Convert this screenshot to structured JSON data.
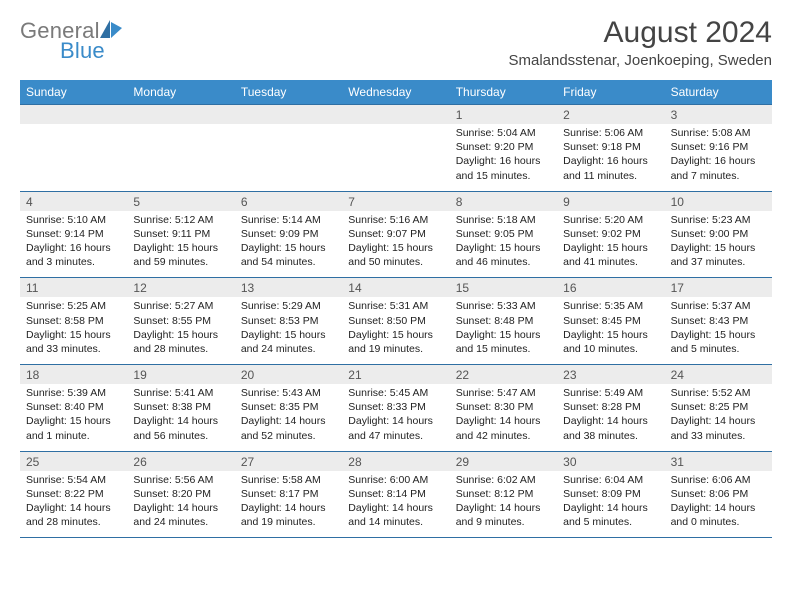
{
  "colors": {
    "header_bg": "#3a8bc9",
    "rule": "#2f6fa3",
    "band": "#ececec",
    "text": "#222222",
    "logo_gray": "#7a7a7a",
    "logo_blue": "#3a8bc9",
    "background": "#ffffff"
  },
  "typography": {
    "base_family": "Arial",
    "title_pt": 30,
    "location_pt": 15,
    "dow_pt": 12,
    "daynum_pt": 12,
    "body_pt": 10.5,
    "logo_pt": 22
  },
  "logo": {
    "part1": "General",
    "part2": "Blue"
  },
  "title": "August 2024",
  "location": "Smalandsstenar, Joenkoeping, Sweden",
  "days_of_week": [
    "Sunday",
    "Monday",
    "Tuesday",
    "Wednesday",
    "Thursday",
    "Friday",
    "Saturday"
  ],
  "weeks": [
    {
      "nums": [
        "",
        "",
        "",
        "",
        "1",
        "2",
        "3"
      ],
      "cells": [
        null,
        null,
        null,
        null,
        {
          "sunrise": "Sunrise: 5:04 AM",
          "sunset": "Sunset: 9:20 PM",
          "daylight1": "Daylight: 16 hours",
          "daylight2": "and 15 minutes."
        },
        {
          "sunrise": "Sunrise: 5:06 AM",
          "sunset": "Sunset: 9:18 PM",
          "daylight1": "Daylight: 16 hours",
          "daylight2": "and 11 minutes."
        },
        {
          "sunrise": "Sunrise: 5:08 AM",
          "sunset": "Sunset: 9:16 PM",
          "daylight1": "Daylight: 16 hours",
          "daylight2": "and 7 minutes."
        }
      ]
    },
    {
      "nums": [
        "4",
        "5",
        "6",
        "7",
        "8",
        "9",
        "10"
      ],
      "cells": [
        {
          "sunrise": "Sunrise: 5:10 AM",
          "sunset": "Sunset: 9:14 PM",
          "daylight1": "Daylight: 16 hours",
          "daylight2": "and 3 minutes."
        },
        {
          "sunrise": "Sunrise: 5:12 AM",
          "sunset": "Sunset: 9:11 PM",
          "daylight1": "Daylight: 15 hours",
          "daylight2": "and 59 minutes."
        },
        {
          "sunrise": "Sunrise: 5:14 AM",
          "sunset": "Sunset: 9:09 PM",
          "daylight1": "Daylight: 15 hours",
          "daylight2": "and 54 minutes."
        },
        {
          "sunrise": "Sunrise: 5:16 AM",
          "sunset": "Sunset: 9:07 PM",
          "daylight1": "Daylight: 15 hours",
          "daylight2": "and 50 minutes."
        },
        {
          "sunrise": "Sunrise: 5:18 AM",
          "sunset": "Sunset: 9:05 PM",
          "daylight1": "Daylight: 15 hours",
          "daylight2": "and 46 minutes."
        },
        {
          "sunrise": "Sunrise: 5:20 AM",
          "sunset": "Sunset: 9:02 PM",
          "daylight1": "Daylight: 15 hours",
          "daylight2": "and 41 minutes."
        },
        {
          "sunrise": "Sunrise: 5:23 AM",
          "sunset": "Sunset: 9:00 PM",
          "daylight1": "Daylight: 15 hours",
          "daylight2": "and 37 minutes."
        }
      ]
    },
    {
      "nums": [
        "11",
        "12",
        "13",
        "14",
        "15",
        "16",
        "17"
      ],
      "cells": [
        {
          "sunrise": "Sunrise: 5:25 AM",
          "sunset": "Sunset: 8:58 PM",
          "daylight1": "Daylight: 15 hours",
          "daylight2": "and 33 minutes."
        },
        {
          "sunrise": "Sunrise: 5:27 AM",
          "sunset": "Sunset: 8:55 PM",
          "daylight1": "Daylight: 15 hours",
          "daylight2": "and 28 minutes."
        },
        {
          "sunrise": "Sunrise: 5:29 AM",
          "sunset": "Sunset: 8:53 PM",
          "daylight1": "Daylight: 15 hours",
          "daylight2": "and 24 minutes."
        },
        {
          "sunrise": "Sunrise: 5:31 AM",
          "sunset": "Sunset: 8:50 PM",
          "daylight1": "Daylight: 15 hours",
          "daylight2": "and 19 minutes."
        },
        {
          "sunrise": "Sunrise: 5:33 AM",
          "sunset": "Sunset: 8:48 PM",
          "daylight1": "Daylight: 15 hours",
          "daylight2": "and 15 minutes."
        },
        {
          "sunrise": "Sunrise: 5:35 AM",
          "sunset": "Sunset: 8:45 PM",
          "daylight1": "Daylight: 15 hours",
          "daylight2": "and 10 minutes."
        },
        {
          "sunrise": "Sunrise: 5:37 AM",
          "sunset": "Sunset: 8:43 PM",
          "daylight1": "Daylight: 15 hours",
          "daylight2": "and 5 minutes."
        }
      ]
    },
    {
      "nums": [
        "18",
        "19",
        "20",
        "21",
        "22",
        "23",
        "24"
      ],
      "cells": [
        {
          "sunrise": "Sunrise: 5:39 AM",
          "sunset": "Sunset: 8:40 PM",
          "daylight1": "Daylight: 15 hours",
          "daylight2": "and 1 minute."
        },
        {
          "sunrise": "Sunrise: 5:41 AM",
          "sunset": "Sunset: 8:38 PM",
          "daylight1": "Daylight: 14 hours",
          "daylight2": "and 56 minutes."
        },
        {
          "sunrise": "Sunrise: 5:43 AM",
          "sunset": "Sunset: 8:35 PM",
          "daylight1": "Daylight: 14 hours",
          "daylight2": "and 52 minutes."
        },
        {
          "sunrise": "Sunrise: 5:45 AM",
          "sunset": "Sunset: 8:33 PM",
          "daylight1": "Daylight: 14 hours",
          "daylight2": "and 47 minutes."
        },
        {
          "sunrise": "Sunrise: 5:47 AM",
          "sunset": "Sunset: 8:30 PM",
          "daylight1": "Daylight: 14 hours",
          "daylight2": "and 42 minutes."
        },
        {
          "sunrise": "Sunrise: 5:49 AM",
          "sunset": "Sunset: 8:28 PM",
          "daylight1": "Daylight: 14 hours",
          "daylight2": "and 38 minutes."
        },
        {
          "sunrise": "Sunrise: 5:52 AM",
          "sunset": "Sunset: 8:25 PM",
          "daylight1": "Daylight: 14 hours",
          "daylight2": "and 33 minutes."
        }
      ]
    },
    {
      "nums": [
        "25",
        "26",
        "27",
        "28",
        "29",
        "30",
        "31"
      ],
      "cells": [
        {
          "sunrise": "Sunrise: 5:54 AM",
          "sunset": "Sunset: 8:22 PM",
          "daylight1": "Daylight: 14 hours",
          "daylight2": "and 28 minutes."
        },
        {
          "sunrise": "Sunrise: 5:56 AM",
          "sunset": "Sunset: 8:20 PM",
          "daylight1": "Daylight: 14 hours",
          "daylight2": "and 24 minutes."
        },
        {
          "sunrise": "Sunrise: 5:58 AM",
          "sunset": "Sunset: 8:17 PM",
          "daylight1": "Daylight: 14 hours",
          "daylight2": "and 19 minutes."
        },
        {
          "sunrise": "Sunrise: 6:00 AM",
          "sunset": "Sunset: 8:14 PM",
          "daylight1": "Daylight: 14 hours",
          "daylight2": "and 14 minutes."
        },
        {
          "sunrise": "Sunrise: 6:02 AM",
          "sunset": "Sunset: 8:12 PM",
          "daylight1": "Daylight: 14 hours",
          "daylight2": "and 9 minutes."
        },
        {
          "sunrise": "Sunrise: 6:04 AM",
          "sunset": "Sunset: 8:09 PM",
          "daylight1": "Daylight: 14 hours",
          "daylight2": "and 5 minutes."
        },
        {
          "sunrise": "Sunrise: 6:06 AM",
          "sunset": "Sunset: 8:06 PM",
          "daylight1": "Daylight: 14 hours",
          "daylight2": "and 0 minutes."
        }
      ]
    }
  ]
}
